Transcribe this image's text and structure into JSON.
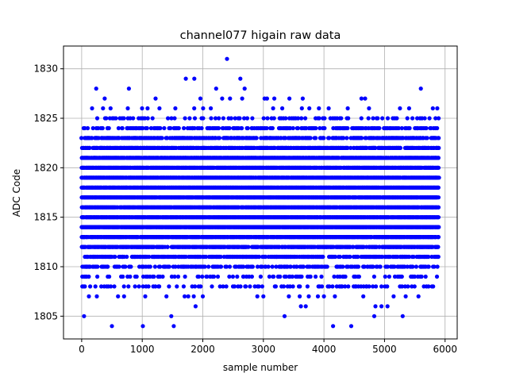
{
  "chart_data": {
    "type": "scatter",
    "title": "channel077 higain raw data",
    "xlabel": "sample number",
    "ylabel": "ADC Code",
    "xlim": [
      -300,
      6200
    ],
    "ylim": [
      1802.7,
      1832.3
    ],
    "xticks": [
      0,
      1000,
      2000,
      3000,
      4000,
      5000,
      6000
    ],
    "yticks": [
      1805,
      1810,
      1815,
      1820,
      1825,
      1830
    ],
    "grid": true,
    "marker_color": "#0000ff",
    "n_samples": 5900,
    "points": [
      [
        40,
        1805
      ],
      [
        500,
        1804
      ],
      [
        1010,
        1804
      ],
      [
        1480,
        1805
      ],
      [
        1520,
        1804
      ],
      [
        1880,
        1806
      ],
      [
        3350,
        1805
      ],
      [
        3620,
        1806
      ],
      [
        3700,
        1806
      ],
      [
        4150,
        1804
      ],
      [
        4450,
        1804
      ],
      [
        4830,
        1805
      ],
      [
        4850,
        1806
      ],
      [
        4950,
        1806
      ],
      [
        5300,
        1805
      ],
      [
        30,
        1808
      ],
      [
        120,
        1807
      ],
      [
        250,
        1807
      ],
      [
        440,
        1808
      ],
      [
        600,
        1807
      ],
      [
        700,
        1807
      ],
      [
        1050,
        1807
      ],
      [
        1400,
        1807
      ],
      [
        1700,
        1807
      ],
      [
        1760,
        1807
      ],
      [
        1850,
        1807
      ],
      [
        2000,
        1807
      ],
      [
        2150,
        1808
      ],
      [
        2700,
        1808
      ],
      [
        2900,
        1807
      ],
      [
        3000,
        1807
      ],
      [
        3300,
        1808
      ],
      [
        3420,
        1807
      ],
      [
        3600,
        1807
      ],
      [
        3750,
        1807
      ],
      [
        3900,
        1807
      ],
      [
        4000,
        1807
      ],
      [
        4180,
        1807
      ],
      [
        4300,
        1808
      ],
      [
        4520,
        1808
      ],
      [
        4650,
        1807
      ],
      [
        4700,
        1808
      ],
      [
        5050,
        1806
      ],
      [
        5150,
        1807
      ],
      [
        5350,
        1807
      ],
      [
        5450,
        1808
      ],
      [
        5560,
        1807
      ],
      [
        5650,
        1808
      ],
      [
        240,
        1828
      ],
      [
        780,
        1828
      ],
      [
        2220,
        1828
      ],
      [
        2400,
        1831
      ],
      [
        2620,
        1829
      ],
      [
        2690,
        1828
      ],
      [
        1720,
        1829
      ],
      [
        1860,
        1829
      ],
      [
        5600,
        1828
      ],
      [
        2450,
        1827
      ],
      [
        3180,
        1827
      ],
      [
        3430,
        1827
      ],
      [
        4620,
        1827
      ],
      [
        3020,
        1827
      ],
      [
        380,
        1827
      ],
      [
        1220,
        1827
      ],
      [
        1960,
        1827
      ],
      [
        2320,
        1827
      ],
      [
        2650,
        1827
      ],
      [
        3060,
        1827
      ],
      [
        3650,
        1827
      ],
      [
        4680,
        1827
      ]
    ]
  }
}
